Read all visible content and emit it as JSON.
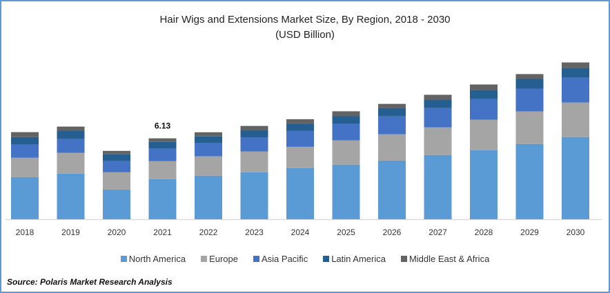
{
  "chart_data": {
    "type": "bar",
    "stacked": true,
    "title": "Hair Wigs and Extensions Market Size, By Region, 2018 - 2030",
    "subtitle": "(USD Billion)",
    "xlabel": "",
    "ylabel": "",
    "ylim": [
      0,
      14
    ],
    "grid": false,
    "legend_position": "bottom",
    "categories": [
      "2018",
      "2019",
      "2020",
      "2021",
      "2022",
      "2023",
      "2024",
      "2025",
      "2026",
      "2027",
      "2028",
      "2029",
      "2030"
    ],
    "series": [
      {
        "name": "North America",
        "color": "#5b9bd5",
        "values": [
          3.19,
          3.46,
          2.25,
          3.04,
          3.3,
          3.56,
          3.87,
          4.14,
          4.45,
          4.87,
          5.24,
          5.71,
          6.23
        ]
      },
      {
        "name": "Europe",
        "color": "#a5a5a5",
        "values": [
          1.47,
          1.57,
          1.31,
          1.36,
          1.47,
          1.57,
          1.62,
          1.83,
          1.99,
          2.09,
          2.3,
          2.46,
          2.62
        ]
      },
      {
        "name": "Asia Pacific",
        "color": "#4472c4",
        "values": [
          0.99,
          1.05,
          0.84,
          0.94,
          0.99,
          1.05,
          1.2,
          1.26,
          1.36,
          1.47,
          1.57,
          1.73,
          1.88
        ]
      },
      {
        "name": "Latin America",
        "color": "#255e91",
        "values": [
          0.58,
          0.63,
          0.52,
          0.52,
          0.52,
          0.58,
          0.52,
          0.58,
          0.63,
          0.63,
          0.68,
          0.73,
          0.73
        ]
      },
      {
        "name": "Middle East & Africa",
        "color": "#636363",
        "values": [
          0.37,
          0.31,
          0.26,
          0.27,
          0.31,
          0.31,
          0.37,
          0.37,
          0.31,
          0.37,
          0.42,
          0.37,
          0.42
        ]
      }
    ],
    "annotations": [
      {
        "category": "2021",
        "text": "6.13"
      }
    ]
  },
  "source": "Source: Polaris Market Research Analysis"
}
